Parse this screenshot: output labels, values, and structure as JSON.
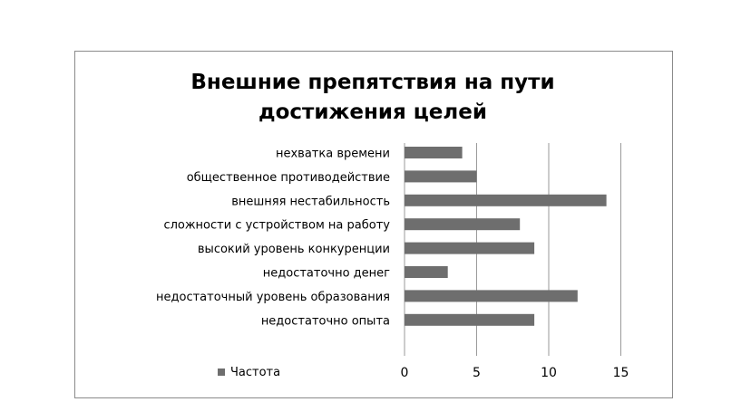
{
  "chart_data": {
    "type": "bar",
    "orientation": "horizontal",
    "title_lines": [
      "Внешние препятствия на пути",
      "достижения целей"
    ],
    "categories": [
      "нехватка времени",
      "общественное противодействие",
      "внешняя нестабильность",
      "сложности с устройством на работу",
      "высокий уровень конкуренции",
      "недостаточно денег",
      "недостаточный уровень образования",
      "недостаточно опыта"
    ],
    "series": [
      {
        "name": "Частота",
        "values": [
          4,
          5,
          14,
          8,
          9,
          3,
          12,
          9
        ]
      }
    ],
    "xlim": [
      0,
      15
    ],
    "xticks": [
      "0",
      "5",
      "10",
      "15"
    ],
    "grid": true,
    "legend_position": "bottom-left",
    "colors": {
      "bar": "#6e6e6e",
      "grid": "#9a9a9a",
      "frame": "#8a8a8a"
    }
  }
}
